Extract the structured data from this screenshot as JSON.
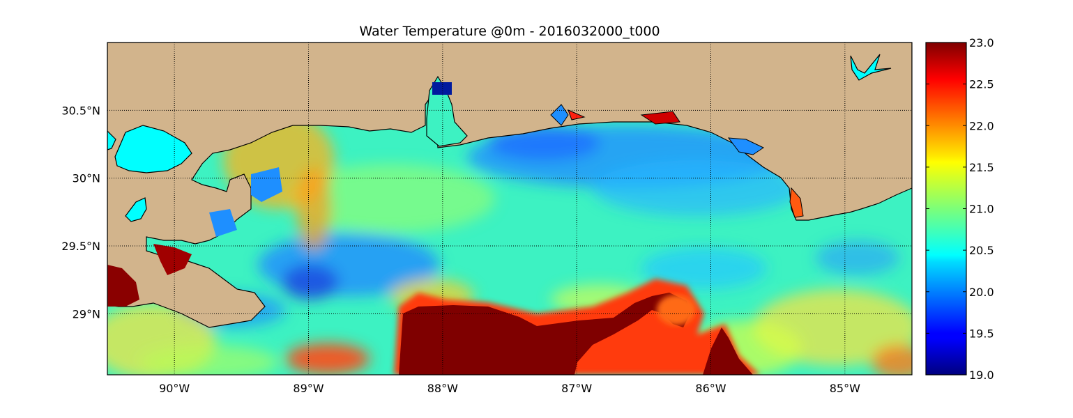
{
  "title": "Water Temperature @0m - 2016032000_t000",
  "map": {
    "lon_range": [
      -90.5,
      -84.5
    ],
    "lat_range": [
      28.55,
      31.0
    ],
    "lon_ticks": [
      {
        "value": -90,
        "label": "90°W"
      },
      {
        "value": -89,
        "label": "89°W"
      },
      {
        "value": -88,
        "label": "88°W"
      },
      {
        "value": -87,
        "label": "87°W"
      },
      {
        "value": -86,
        "label": "86°W"
      },
      {
        "value": -85,
        "label": "85°W"
      }
    ],
    "lat_ticks": [
      {
        "value": 30.5,
        "label": "30.5°N"
      },
      {
        "value": 30.0,
        "label": "30°N"
      },
      {
        "value": 29.5,
        "label": "29.5°N"
      },
      {
        "value": 29.0,
        "label": "29°N"
      }
    ],
    "grid": true,
    "land_color": "#d2b48c",
    "lake_color": "#00ffff",
    "colormap": "jet"
  },
  "colorbar": {
    "min": 19.0,
    "max": 23.0,
    "tick_labels": [
      "23.0",
      "22.5",
      "22.0",
      "21.5",
      "21.0",
      "20.5",
      "20.0",
      "19.5",
      "19.0"
    ],
    "placement": "right"
  }
}
